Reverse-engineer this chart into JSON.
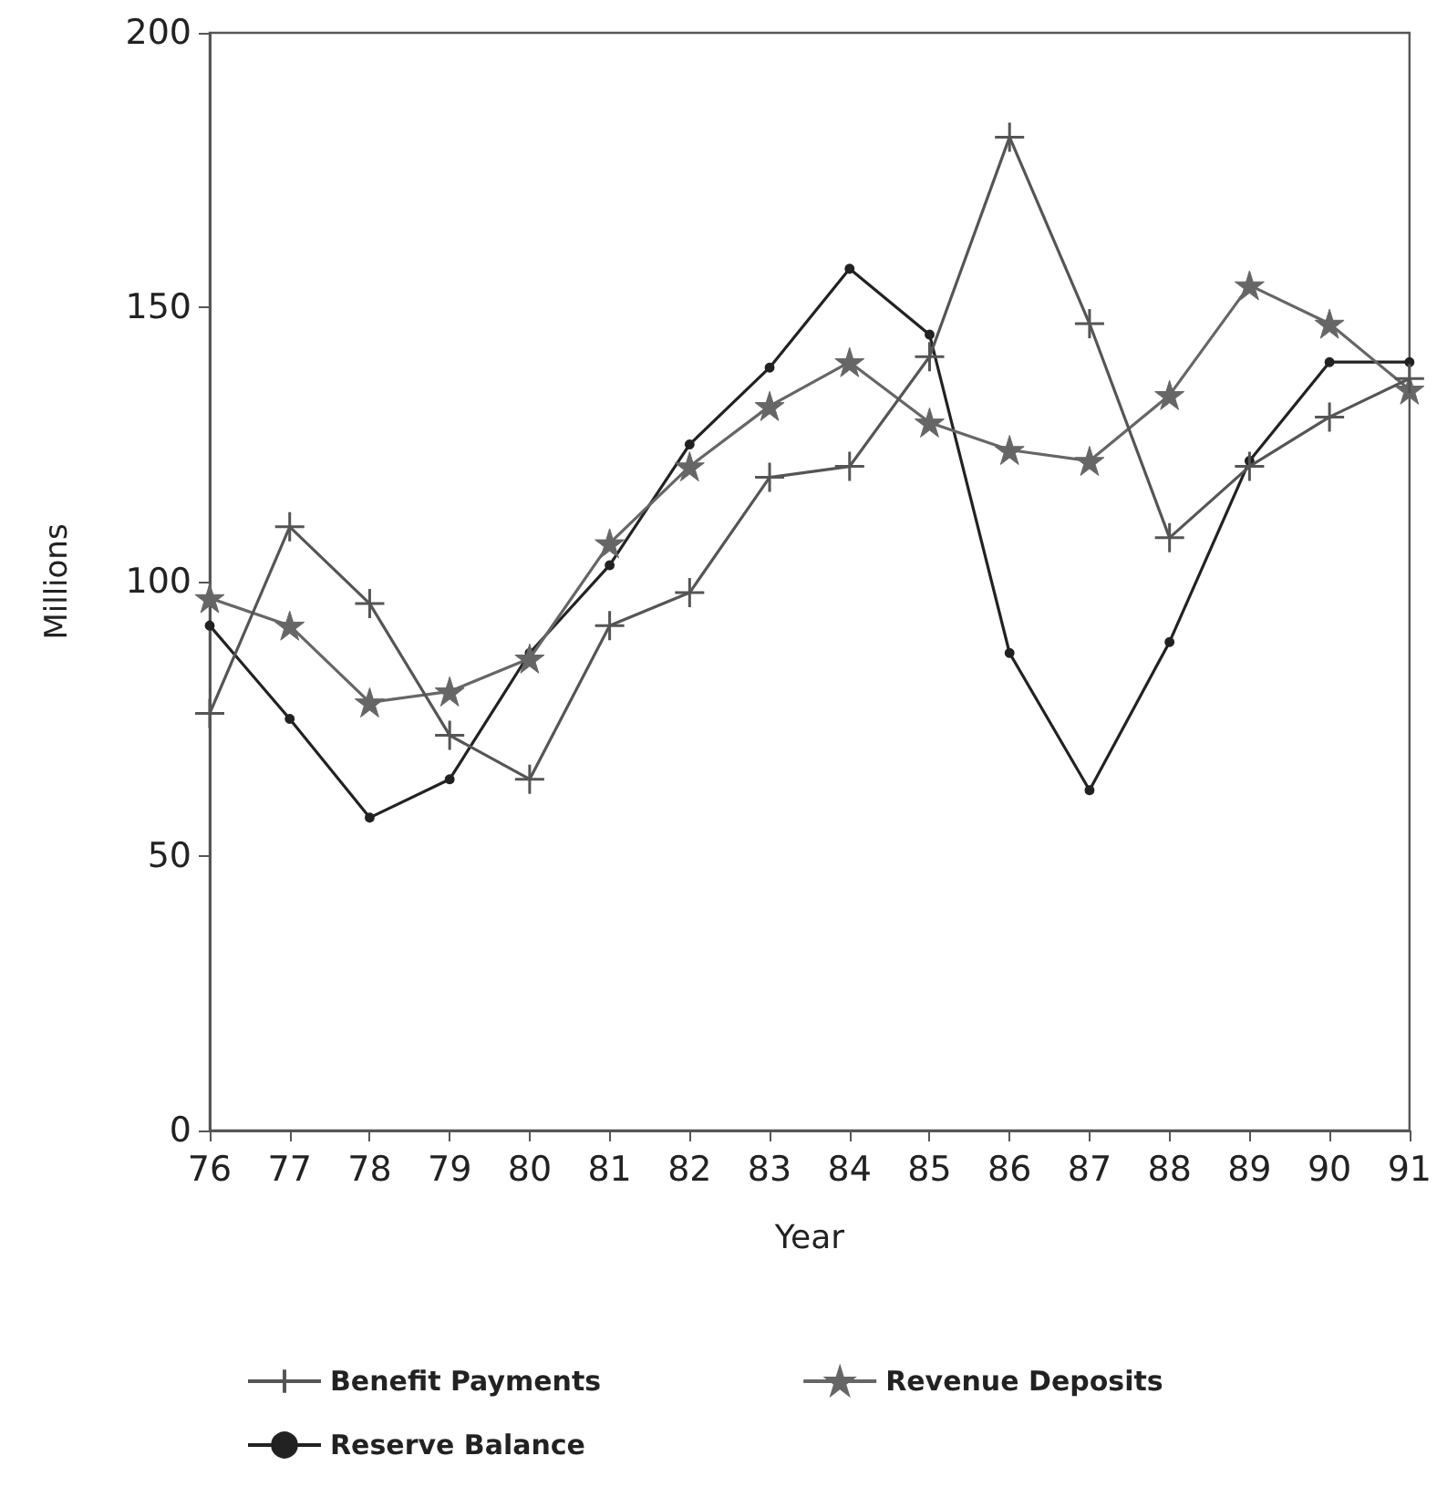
{
  "chart_data": {
    "type": "line",
    "xlabel": "Year",
    "ylabel": "Millions",
    "categories": [
      "76",
      "77",
      "78",
      "79",
      "80",
      "81",
      "82",
      "83",
      "84",
      "85",
      "86",
      "87",
      "88",
      "89",
      "90",
      "91"
    ],
    "series": [
      {
        "name": "Benefit Payments",
        "color": "#555555",
        "marker": "cross",
        "values": [
          76,
          110,
          96,
          72,
          64,
          92,
          98,
          119,
          121,
          141,
          181,
          147,
          108,
          121,
          130,
          137
        ]
      },
      {
        "name": "Revenue Deposits",
        "color": "#666666",
        "marker": "star",
        "values": [
          97,
          92,
          78,
          80,
          86,
          107,
          121,
          132,
          140,
          129,
          124,
          122,
          134,
          154,
          147,
          135
        ]
      },
      {
        "name": "Reserve Balance",
        "color": "#222222",
        "marker": "circle",
        "values": [
          92,
          75,
          57,
          64,
          87,
          103,
          125,
          139,
          157,
          145,
          87,
          62,
          89,
          122,
          140,
          140
        ]
      }
    ],
    "ylim": [
      0,
      200
    ],
    "yticks": [
      0,
      50,
      100,
      150,
      200
    ],
    "grid": false,
    "legend": "bottom",
    "line_style": "solid"
  }
}
